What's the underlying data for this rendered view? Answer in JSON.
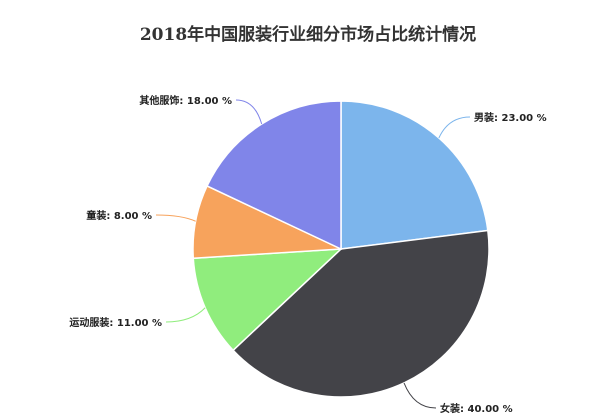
{
  "chart_data": {
    "type": "pie",
    "title": "2018年中国服装行业细分市场占比统计情况",
    "start_angle": "top, clockwise",
    "slices": [
      {
        "name": "男装",
        "value": 23.0,
        "label": "男装: 23.00 %",
        "color": "#7cb5ec"
      },
      {
        "name": "女装",
        "value": 40.0,
        "label": "女装: 40.00 %",
        "color": "#434348"
      },
      {
        "name": "运动服装",
        "value": 11.0,
        "label": "运动服装: 11.00 %",
        "color": "#90ed7d"
      },
      {
        "name": "童装",
        "value": 8.0,
        "label": "童装: 8.00 %",
        "color": "#f7a35c"
      },
      {
        "name": "其他服饰",
        "value": 18.0,
        "label": "其他服饰: 18.00 %",
        "color": "#8085e9"
      }
    ]
  }
}
